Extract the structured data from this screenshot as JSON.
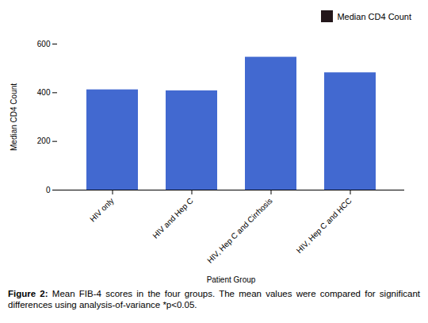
{
  "chart_data": {
    "type": "bar",
    "categories": [
      "HIV only",
      "HIV and Hep C",
      "HIV, Hep C and Cirrhosis",
      "HIV, Hep C and HCC"
    ],
    "series": [
      {
        "name": "Median CD4 Count",
        "values": [
          412,
          408,
          546,
          482
        ]
      }
    ],
    "xlabel": "Patient Group",
    "ylabel": "Median CD4 Count",
    "ylim": [
      0,
      600
    ],
    "yticks": [
      0,
      200,
      400,
      600
    ],
    "grid": false,
    "legend": "upper right",
    "caption": "Figure 2: Mean FIB-4 scores in the four groups. The mean values were compared for significant differences using analysis-of-variance *p<0.05."
  }
}
